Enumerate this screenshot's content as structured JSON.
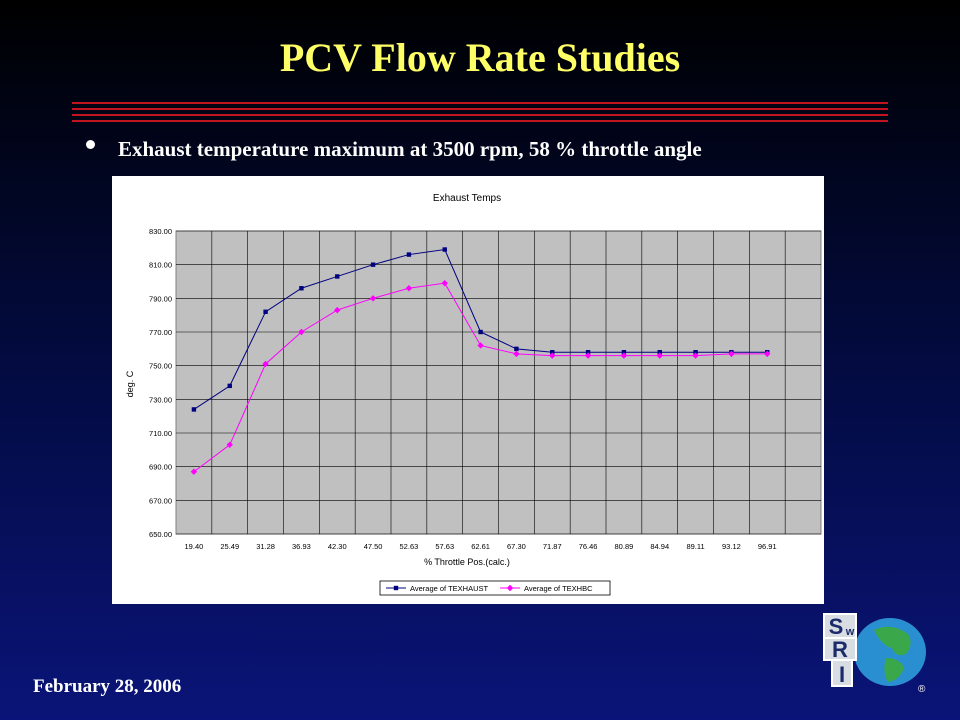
{
  "slide": {
    "title": "PCV Flow Rate Studies",
    "bullet": "Exhaust temperature maximum at 3500 rpm, 58 % throttle angle",
    "footer_date": "February 28, 2006",
    "registered_mark": "®",
    "logo_letters": [
      "S",
      "w",
      "R",
      "I"
    ],
    "colors": {
      "title": "#ffff66",
      "text": "#ffffff",
      "rules": "#c0141e",
      "background_top": "#000000",
      "background_bottom": "#0a1478"
    }
  },
  "chart_data": {
    "type": "line",
    "title": "Exhaust Temps",
    "xlabel": "% Throttle Pos.(calc.)",
    "ylabel": "deg. C",
    "ylim": [
      650,
      830
    ],
    "yticks": [
      "650.00",
      "670.00",
      "690.00",
      "710.00",
      "730.00",
      "750.00",
      "770.00",
      "790.00",
      "810.00",
      "830.00"
    ],
    "categories": [
      "19.40",
      "25.49",
      "31.28",
      "36.93",
      "42.30",
      "47.50",
      "52.63",
      "57.63",
      "62.61",
      "67.30",
      "71.87",
      "76.46",
      "80.89",
      "84.94",
      "89.11",
      "93.12",
      "96.91"
    ],
    "plot_background": "#c0c0c0",
    "grid": true,
    "legend_position": "bottom",
    "series": [
      {
        "name": "Average of TEXHAUST",
        "color": "#000080",
        "marker": "square",
        "values": [
          724,
          738,
          782,
          796,
          803,
          810,
          816,
          819,
          770,
          760,
          758,
          758,
          758,
          758,
          758,
          758,
          758
        ]
      },
      {
        "name": "Average of TEXHBC",
        "color": "#ff00ff",
        "marker": "diamond",
        "values": [
          687,
          703,
          751,
          770,
          783,
          790,
          796,
          799,
          762,
          757,
          756,
          756,
          756,
          756,
          756,
          757,
          757
        ]
      }
    ]
  }
}
